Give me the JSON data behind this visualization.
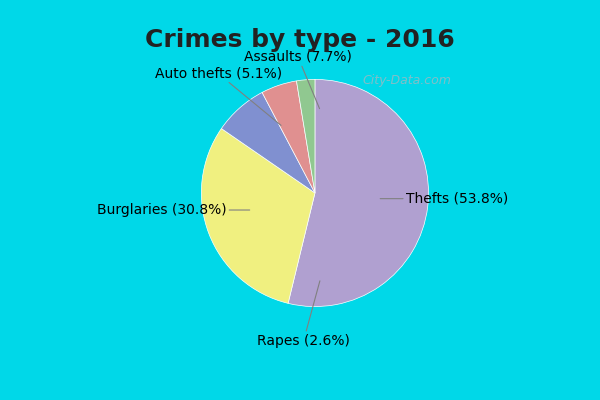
{
  "title": "Crimes by type - 2016",
  "title_fontsize": 18,
  "title_fontweight": "bold",
  "slices": [
    {
      "label": "Thefts",
      "pct": 53.8,
      "color": "#b0a0d0"
    },
    {
      "label": "Burglaries",
      "pct": 30.8,
      "color": "#f0f080"
    },
    {
      "label": "Assaults",
      "pct": 7.7,
      "color": "#8090d0"
    },
    {
      "label": "Auto thefts",
      "pct": 5.1,
      "color": "#e09090"
    },
    {
      "label": "Rapes",
      "pct": 2.6,
      "color": "#90c890"
    }
  ],
  "background_color": "#c8ead8",
  "outer_bg_color": "#00d8e8",
  "watermark": "City-Data.com",
  "label_fontsize": 10,
  "startangle": 90
}
